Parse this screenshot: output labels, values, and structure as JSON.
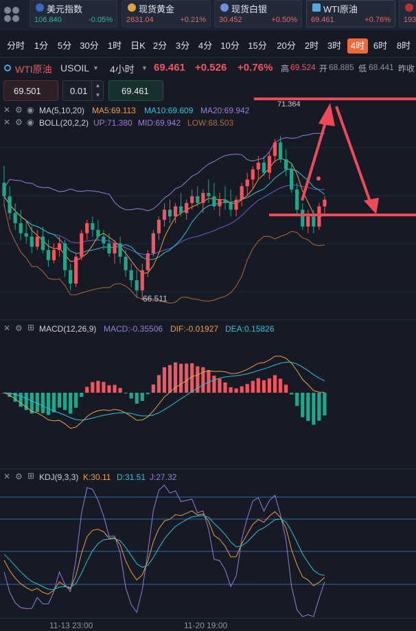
{
  "quotes": [
    {
      "name": "美元指数",
      "price": "106.840",
      "change": "-0.05%",
      "dir": "down",
      "flag_color": "#3a66c9"
    },
    {
      "name": "现货黄金",
      "price": "2631.04",
      "change": "+0.21%",
      "dir": "up",
      "flag_color": "#e0a23a"
    },
    {
      "name": "现货白银",
      "price": "30.452",
      "change": "+0.50%",
      "dir": "up",
      "flag_color": "#6f8fd8"
    },
    {
      "name": "WTI原油",
      "price": "69.461",
      "change": "+0.76%",
      "dir": "up",
      "flag_color": "#5aa8d8"
    },
    {
      "name": "",
      "price": "193",
      "change": "",
      "dir": "up",
      "flag_color": "#c03030"
    }
  ],
  "periods": [
    "分时",
    "1分",
    "5分",
    "30分",
    "1时",
    "日K",
    "2分",
    "3分",
    "4分",
    "10分",
    "15分",
    "20分",
    "2时",
    "3时",
    "4时",
    "6时",
    "8时"
  ],
  "selected_period": "4时",
  "header": {
    "symbol": "WTI原油",
    "code": "USOIL",
    "interval": "4小时",
    "price": "69.461",
    "change": "+0.526",
    "change_pct": "+0.76%",
    "high_label": "高",
    "high": "69.524",
    "open_label": "开",
    "open": "68.885",
    "low_label": "低",
    "low": "68.441",
    "prev_label": "昨收"
  },
  "order": {
    "sell_price": "69.501",
    "lot": "0.01",
    "buy_price": "69.461"
  },
  "price_panel": {
    "ma_label": "MA(5,10,20)",
    "ma5": "MA5:69.113",
    "ma10": "MA10:69.609",
    "ma20": "MA20:69.942",
    "boll_label": "BOLL(20,2,2)",
    "boll_up": "UP:71.380",
    "boll_mid": "MID:69.942",
    "boll_low": "LOW:68.503",
    "high_marker": "71.364",
    "low_marker": "66.511"
  },
  "macd_panel": {
    "label": "MACD(12,26,9)",
    "macd": "MACD:-0.35506",
    "dif": "DIF:-0.01927",
    "dea": "DEA:0.15826"
  },
  "kdj_panel": {
    "label": "KDJ(9,3,3)",
    "k": "K:30.11",
    "d": "D:31.51",
    "j": "J:27.32"
  },
  "time_axis": [
    "11-13 23:00",
    "11-20 19:00"
  ],
  "colors": {
    "up": "#f0565f",
    "down": "#22a58a",
    "ma5": "#f0a040",
    "ma10": "#26c6da",
    "ma20": "#9b7ddb",
    "boll": "#b8683a",
    "annot": "#f04a5a",
    "accent": "#f06a3a"
  },
  "chart_data": {
    "type": "candlestick",
    "price_range": [
      66.0,
      71.6
    ],
    "candles": [
      [
        70.0,
        70.5,
        69.3,
        69.6
      ],
      [
        69.6,
        69.9,
        68.9,
        69.1
      ],
      [
        69.1,
        69.4,
        68.6,
        68.8
      ],
      [
        68.8,
        69.2,
        68.3,
        68.5
      ],
      [
        68.5,
        68.9,
        68.2,
        68.4
      ],
      [
        68.4,
        68.7,
        67.9,
        68.1
      ],
      [
        68.1,
        68.6,
        68.0,
        68.4
      ],
      [
        68.4,
        68.7,
        67.9,
        68.0
      ],
      [
        68.0,
        68.3,
        67.5,
        67.7
      ],
      [
        67.7,
        68.2,
        67.6,
        68.0
      ],
      [
        68.0,
        68.4,
        67.8,
        68.2
      ],
      [
        68.2,
        68.3,
        67.2,
        67.4
      ],
      [
        67.4,
        67.6,
        66.8,
        67.0
      ],
      [
        67.0,
        67.9,
        66.9,
        67.8
      ],
      [
        67.8,
        68.6,
        67.7,
        68.5
      ],
      [
        68.5,
        68.9,
        68.3,
        68.8
      ],
      [
        68.8,
        69.0,
        68.4,
        68.6
      ],
      [
        68.6,
        68.9,
        68.3,
        68.4
      ],
      [
        68.4,
        68.6,
        68.0,
        68.2
      ],
      [
        68.2,
        68.5,
        67.8,
        67.9
      ],
      [
        67.9,
        68.3,
        67.6,
        68.2
      ],
      [
        68.2,
        68.4,
        67.6,
        67.8
      ],
      [
        67.8,
        68.0,
        67.2,
        67.4
      ],
      [
        67.4,
        67.6,
        66.9,
        67.1
      ],
      [
        67.1,
        67.4,
        66.6,
        66.8
      ],
      [
        66.8,
        67.6,
        66.5,
        67.4
      ],
      [
        67.4,
        68.0,
        67.2,
        67.9
      ],
      [
        67.9,
        68.6,
        67.8,
        68.5
      ],
      [
        68.5,
        69.0,
        68.3,
        68.9
      ],
      [
        68.9,
        69.4,
        68.7,
        69.2
      ],
      [
        69.2,
        69.5,
        68.8,
        69.0
      ],
      [
        69.0,
        69.4,
        68.8,
        69.3
      ],
      [
        69.3,
        69.7,
        69.0,
        69.1
      ],
      [
        69.1,
        69.5,
        68.9,
        69.4
      ],
      [
        69.4,
        69.8,
        69.2,
        69.6
      ],
      [
        69.6,
        69.9,
        69.3,
        69.4
      ],
      [
        69.4,
        69.8,
        69.1,
        69.7
      ],
      [
        69.7,
        70.1,
        69.4,
        69.6
      ],
      [
        69.6,
        70.0,
        69.2,
        69.3
      ],
      [
        69.3,
        69.7,
        69.0,
        69.5
      ],
      [
        69.5,
        69.9,
        69.2,
        69.4
      ],
      [
        69.4,
        69.8,
        69.0,
        69.2
      ],
      [
        69.2,
        69.6,
        69.0,
        69.5
      ],
      [
        69.5,
        70.0,
        69.3,
        69.9
      ],
      [
        69.9,
        70.3,
        69.6,
        70.1
      ],
      [
        70.1,
        70.5,
        69.8,
        70.4
      ],
      [
        70.4,
        70.8,
        70.1,
        70.6
      ],
      [
        70.6,
        70.8,
        70.2,
        70.3
      ],
      [
        70.3,
        70.9,
        70.1,
        70.8
      ],
      [
        70.8,
        71.3,
        70.6,
        71.2
      ],
      [
        71.2,
        71.4,
        70.6,
        70.7
      ],
      [
        70.7,
        71.0,
        70.2,
        70.4
      ],
      [
        70.4,
        70.6,
        69.7,
        69.8
      ],
      [
        69.8,
        70.0,
        69.0,
        69.2
      ],
      [
        69.2,
        69.4,
        68.6,
        68.7
      ],
      [
        68.7,
        69.2,
        68.5,
        69.0
      ],
      [
        69.0,
        69.2,
        68.5,
        68.7
      ],
      [
        68.7,
        69.4,
        68.6,
        69.3
      ],
      [
        69.3,
        69.6,
        69.0,
        69.5
      ]
    ]
  }
}
